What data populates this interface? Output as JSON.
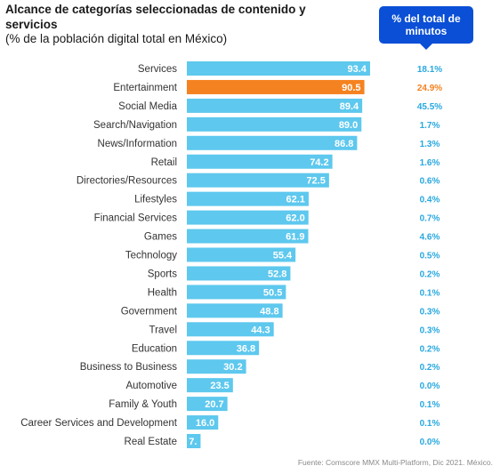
{
  "title": "Alcance de categorías seleccionadas de contenido y servicios",
  "subtitle": "(% de la población digital total en México)",
  "callout_label": "% del total de minutos",
  "source": "Fuente: Comscore MMX Multi-Platform, Dic 2021. México.",
  "colors": {
    "bar": "#5ec8ee",
    "highlight_bar": "#f58220",
    "share_text": "#29a8e0",
    "highlight_share_text": "#f58220",
    "callout": "#0a4fd6"
  },
  "chart_data": {
    "type": "bar",
    "orientation": "horizontal",
    "title": "Alcance de categorías seleccionadas de contenido y servicios",
    "subtitle": "(% de la población digital total en México)",
    "xlim": [
      0,
      100
    ],
    "grid": false,
    "highlight_category": "Entertainment",
    "categories": [
      "Services",
      "Entertainment",
      "Social Media",
      "Search/Navigation",
      "News/Information",
      "Retail",
      "Directories/Resources",
      "Lifestyles",
      "Financial Services",
      "Games",
      "Technology",
      "Sports",
      "Health",
      "Government",
      "Travel",
      "Education",
      "Business to Business",
      "Automotive",
      "Family & Youth",
      "Career Services and Development",
      "Real Estate"
    ],
    "values": [
      93.4,
      90.5,
      89.4,
      89.0,
      86.8,
      74.2,
      72.5,
      62.1,
      62.0,
      61.9,
      55.4,
      52.8,
      50.5,
      48.8,
      44.3,
      36.8,
      30.2,
      23.5,
      20.7,
      16.0,
      7.0
    ],
    "value_labels": [
      "93.4",
      "90.5",
      "89.4",
      "89.0",
      "86.8",
      "74.2",
      "72.5",
      "62.1",
      "62.0",
      "61.9",
      "55.4",
      "52.8",
      "50.5",
      "48.8",
      "44.3",
      "36.8",
      "30.2",
      "23.5",
      "20.7",
      "16.0",
      "7."
    ],
    "share_of_minutes": [
      "18.1%",
      "24.9%",
      "45.5%",
      "1.7%",
      "1.3%",
      "1.6%",
      "0.6%",
      "0.4%",
      "0.7%",
      "4.6%",
      "0.5%",
      "0.2%",
      "0.1%",
      "0.3%",
      "0.3%",
      "0.2%",
      "0.2%",
      "0.0%",
      "0.1%",
      "0.1%",
      "0.0%"
    ]
  }
}
